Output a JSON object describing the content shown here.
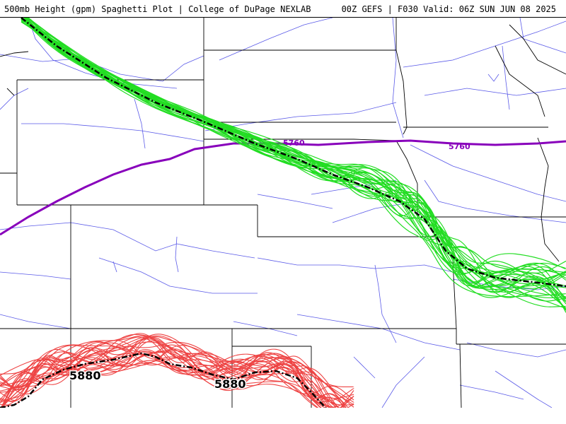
{
  "header": {
    "title": "500mb Height (gpm) Spaghetti Plot | College of DuPage NEXLAB",
    "run_info": "00Z GEFS | F030 Valid: 06Z SUN JUN 08 2025"
  },
  "contours": {
    "label_5760": "5760",
    "label_5880": "5880"
  },
  "colors": {
    "member_5760": "#22dd22",
    "member_5880": "#ee4444",
    "mean": "#000000",
    "climo_5760": "#8800bb",
    "roads": "#5a5ae8",
    "borders": "#000000"
  }
}
